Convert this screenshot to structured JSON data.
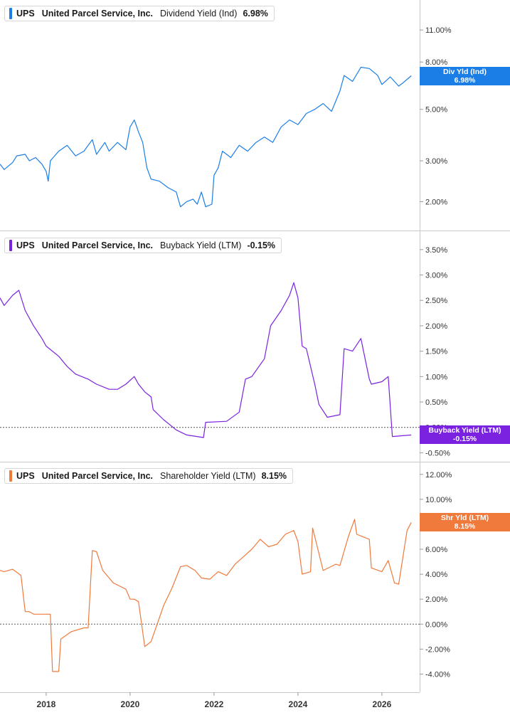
{
  "colors": {
    "blue": "#1a7ee6",
    "purple": "#7a22e0",
    "orange": "#f07a3c",
    "grid": "#d9d9d9",
    "text": "#333333"
  },
  "x_axis": {
    "labels": [
      "2018",
      "2020",
      "2022",
      "2024",
      "2026"
    ]
  },
  "chart_data": [
    {
      "type": "line",
      "ticker": "UPS",
      "company": "United Parcel Service, Inc.",
      "metric": "Dividend Yield (Ind)",
      "value_label": "6.98%",
      "tag_title": "Div Yld (Ind)",
      "tag_value": "6.98%",
      "scale": "log",
      "ylim": [
        1.6,
        14.0
      ],
      "yticks": [
        "2.00%",
        "3.00%",
        "5.00%",
        "8.00%",
        "11.00%"
      ],
      "x": [
        2016.9,
        2017.0,
        2017.2,
        2017.3,
        2017.5,
        2017.6,
        2017.75,
        2017.9,
        2018.0,
        2018.05,
        2018.1,
        2018.3,
        2018.5,
        2018.7,
        2018.9,
        2019.1,
        2019.2,
        2019.4,
        2019.5,
        2019.7,
        2019.9,
        2020.0,
        2020.1,
        2020.2,
        2020.3,
        2020.4,
        2020.5,
        2020.7,
        2020.9,
        2021.1,
        2021.2,
        2021.35,
        2021.5,
        2021.6,
        2021.7,
        2021.8,
        2021.95,
        2022.0,
        2022.1,
        2022.2,
        2022.4,
        2022.6,
        2022.8,
        2023.0,
        2023.2,
        2023.4,
        2023.6,
        2023.8,
        2024.0,
        2024.2,
        2024.4,
        2024.6,
        2024.8,
        2025.0,
        2025.1,
        2025.3,
        2025.5,
        2025.7,
        2025.9,
        2026.0,
        2026.2,
        2026.4,
        2026.5,
        2026.7
      ],
      "y": [
        2.9,
        2.75,
        2.95,
        3.15,
        3.2,
        3.0,
        3.1,
        2.9,
        2.7,
        2.45,
        3.0,
        3.3,
        3.5,
        3.15,
        3.3,
        3.7,
        3.2,
        3.6,
        3.3,
        3.6,
        3.35,
        4.2,
        4.5,
        4.0,
        3.6,
        2.8,
        2.5,
        2.45,
        2.3,
        2.2,
        1.9,
        2.0,
        2.05,
        1.95,
        2.2,
        1.9,
        1.95,
        2.6,
        2.8,
        3.3,
        3.1,
        3.5,
        3.3,
        3.6,
        3.8,
        3.6,
        4.2,
        4.5,
        4.3,
        4.8,
        5.0,
        5.3,
        4.9,
        6.0,
        7.0,
        6.6,
        7.6,
        7.5,
        7.0,
        6.4,
        6.9,
        6.3,
        6.5,
        6.98
      ]
    },
    {
      "type": "line",
      "ticker": "UPS",
      "company": "United Parcel Service, Inc.",
      "metric": "Buyback Yield (LTM)",
      "value_label": "-0.15%",
      "tag_title": "Buyback Yield (LTM)",
      "tag_value": "-0.15%",
      "scale": "linear",
      "ylim": [
        -0.55,
        3.75
      ],
      "yticks": [
        "-0.50%",
        "0.00%",
        "0.50%",
        "1.00%",
        "1.50%",
        "2.00%",
        "2.50%",
        "3.00%",
        "3.50%"
      ],
      "baseline": 0,
      "x": [
        2016.9,
        2017.0,
        2017.2,
        2017.35,
        2017.5,
        2017.7,
        2017.9,
        2018.0,
        2018.3,
        2018.5,
        2018.7,
        2019.0,
        2019.2,
        2019.5,
        2019.7,
        2019.9,
        2020.1,
        2020.2,
        2020.35,
        2020.5,
        2020.55,
        2020.8,
        2021.1,
        2021.35,
        2021.75,
        2021.8,
        2022.3,
        2022.6,
        2022.75,
        2022.9,
        2023.2,
        2023.35,
        2023.6,
        2023.8,
        2023.9,
        2024.0,
        2024.1,
        2024.2,
        2024.4,
        2024.5,
        2024.7,
        2025.0,
        2025.1,
        2025.3,
        2025.5,
        2025.7,
        2025.75,
        2026.0,
        2026.15,
        2026.25,
        2026.7
      ],
      "y": [
        2.55,
        2.4,
        2.6,
        2.7,
        2.3,
        2.0,
        1.75,
        1.6,
        1.4,
        1.2,
        1.05,
        0.95,
        0.85,
        0.75,
        0.75,
        0.85,
        1.0,
        0.85,
        0.7,
        0.6,
        0.35,
        0.15,
        -0.05,
        -0.15,
        -0.2,
        0.1,
        0.12,
        0.3,
        0.95,
        1.0,
        1.35,
        2.0,
        2.3,
        2.6,
        2.85,
        2.55,
        1.6,
        1.55,
        0.85,
        0.45,
        0.2,
        0.25,
        1.55,
        1.5,
        1.75,
        0.95,
        0.85,
        0.9,
        1.0,
        -0.18,
        -0.15
      ]
    },
    {
      "type": "line",
      "ticker": "UPS",
      "company": "United Parcel Service, Inc.",
      "metric": "Shareholder Yield (LTM)",
      "value_label": "8.15%",
      "tag_title": "Shr Yld (LTM)",
      "tag_value": "8.15%",
      "scale": "linear",
      "ylim": [
        -5.0,
        12.5
      ],
      "yticks": [
        "-4.00%",
        "-2.00%",
        "0.00%",
        "2.00%",
        "4.00%",
        "6.00%",
        "8.00%",
        "10.00%",
        "12.00%"
      ],
      "baseline": 0,
      "x": [
        2016.9,
        2017.0,
        2017.2,
        2017.4,
        2017.5,
        2017.6,
        2017.7,
        2017.9,
        2018.1,
        2018.15,
        2018.3,
        2018.35,
        2018.6,
        2018.9,
        2019.0,
        2019.1,
        2019.2,
        2019.35,
        2019.6,
        2019.9,
        2020.0,
        2020.1,
        2020.2,
        2020.35,
        2020.5,
        2020.8,
        2021.0,
        2021.2,
        2021.35,
        2021.55,
        2021.7,
        2021.9,
        2022.1,
        2022.3,
        2022.5,
        2022.7,
        2022.9,
        2023.1,
        2023.3,
        2023.5,
        2023.7,
        2023.9,
        2024.0,
        2024.1,
        2024.3,
        2024.35,
        2024.6,
        2024.9,
        2025.0,
        2025.2,
        2025.35,
        2025.4,
        2025.7,
        2025.75,
        2026.0,
        2026.15,
        2026.3,
        2026.4,
        2026.6,
        2026.7
      ],
      "y": [
        4.3,
        4.2,
        4.4,
        3.9,
        1.0,
        1.0,
        0.8,
        0.8,
        0.8,
        -3.8,
        -3.8,
        -1.2,
        -0.6,
        -0.3,
        -0.3,
        5.9,
        5.8,
        4.3,
        3.3,
        2.8,
        2.0,
        2.0,
        1.8,
        -1.8,
        -1.4,
        1.5,
        2.9,
        4.6,
        4.7,
        4.3,
        3.7,
        3.6,
        4.2,
        3.9,
        4.8,
        5.4,
        6.0,
        6.8,
        6.2,
        6.4,
        7.2,
        7.5,
        6.6,
        4.0,
        4.2,
        7.7,
        4.3,
        4.8,
        4.7,
        7.0,
        8.4,
        7.2,
        6.8,
        4.5,
        4.2,
        5.1,
        3.3,
        3.2,
        7.5,
        8.15
      ]
    }
  ]
}
